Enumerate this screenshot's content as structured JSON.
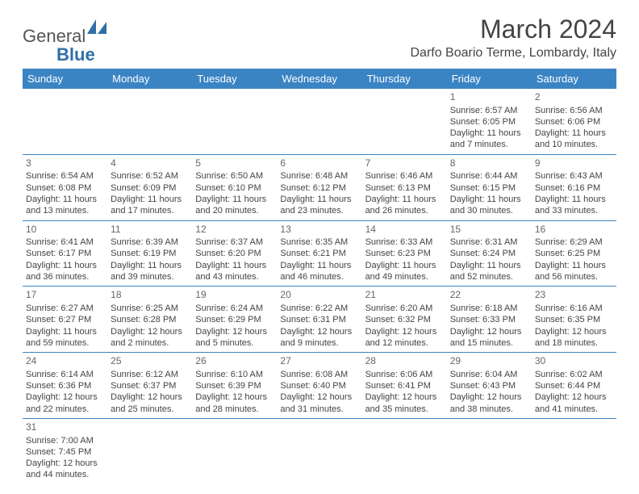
{
  "logo": {
    "text1": "General",
    "text2": "Blue"
  },
  "title": "March 2024",
  "location": "Darfo Boario Terme, Lombardy, Italy",
  "colors": {
    "header_bg": "#3b84c4",
    "header_text": "#ffffff",
    "border": "#3b84c4",
    "body_text": "#444444",
    "daynum_text": "#666666",
    "logo_gray": "#555555",
    "logo_blue": "#2f6fa7",
    "page_bg": "#ffffff"
  },
  "typography": {
    "title_fontsize": 32,
    "location_fontsize": 16,
    "dayheader_fontsize": 13,
    "cell_fontsize": 11,
    "daynum_fontsize": 12,
    "logo_fontsize": 22
  },
  "day_headers": [
    "Sunday",
    "Monday",
    "Tuesday",
    "Wednesday",
    "Thursday",
    "Friday",
    "Saturday"
  ],
  "weeks": [
    [
      null,
      null,
      null,
      null,
      null,
      {
        "n": "1",
        "sr": "Sunrise: 6:57 AM",
        "ss": "Sunset: 6:05 PM",
        "dl1": "Daylight: 11 hours",
        "dl2": "and 7 minutes."
      },
      {
        "n": "2",
        "sr": "Sunrise: 6:56 AM",
        "ss": "Sunset: 6:06 PM",
        "dl1": "Daylight: 11 hours",
        "dl2": "and 10 minutes."
      }
    ],
    [
      {
        "n": "3",
        "sr": "Sunrise: 6:54 AM",
        "ss": "Sunset: 6:08 PM",
        "dl1": "Daylight: 11 hours",
        "dl2": "and 13 minutes."
      },
      {
        "n": "4",
        "sr": "Sunrise: 6:52 AM",
        "ss": "Sunset: 6:09 PM",
        "dl1": "Daylight: 11 hours",
        "dl2": "and 17 minutes."
      },
      {
        "n": "5",
        "sr": "Sunrise: 6:50 AM",
        "ss": "Sunset: 6:10 PM",
        "dl1": "Daylight: 11 hours",
        "dl2": "and 20 minutes."
      },
      {
        "n": "6",
        "sr": "Sunrise: 6:48 AM",
        "ss": "Sunset: 6:12 PM",
        "dl1": "Daylight: 11 hours",
        "dl2": "and 23 minutes."
      },
      {
        "n": "7",
        "sr": "Sunrise: 6:46 AM",
        "ss": "Sunset: 6:13 PM",
        "dl1": "Daylight: 11 hours",
        "dl2": "and 26 minutes."
      },
      {
        "n": "8",
        "sr": "Sunrise: 6:44 AM",
        "ss": "Sunset: 6:15 PM",
        "dl1": "Daylight: 11 hours",
        "dl2": "and 30 minutes."
      },
      {
        "n": "9",
        "sr": "Sunrise: 6:43 AM",
        "ss": "Sunset: 6:16 PM",
        "dl1": "Daylight: 11 hours",
        "dl2": "and 33 minutes."
      }
    ],
    [
      {
        "n": "10",
        "sr": "Sunrise: 6:41 AM",
        "ss": "Sunset: 6:17 PM",
        "dl1": "Daylight: 11 hours",
        "dl2": "and 36 minutes."
      },
      {
        "n": "11",
        "sr": "Sunrise: 6:39 AM",
        "ss": "Sunset: 6:19 PM",
        "dl1": "Daylight: 11 hours",
        "dl2": "and 39 minutes."
      },
      {
        "n": "12",
        "sr": "Sunrise: 6:37 AM",
        "ss": "Sunset: 6:20 PM",
        "dl1": "Daylight: 11 hours",
        "dl2": "and 43 minutes."
      },
      {
        "n": "13",
        "sr": "Sunrise: 6:35 AM",
        "ss": "Sunset: 6:21 PM",
        "dl1": "Daylight: 11 hours",
        "dl2": "and 46 minutes."
      },
      {
        "n": "14",
        "sr": "Sunrise: 6:33 AM",
        "ss": "Sunset: 6:23 PM",
        "dl1": "Daylight: 11 hours",
        "dl2": "and 49 minutes."
      },
      {
        "n": "15",
        "sr": "Sunrise: 6:31 AM",
        "ss": "Sunset: 6:24 PM",
        "dl1": "Daylight: 11 hours",
        "dl2": "and 52 minutes."
      },
      {
        "n": "16",
        "sr": "Sunrise: 6:29 AM",
        "ss": "Sunset: 6:25 PM",
        "dl1": "Daylight: 11 hours",
        "dl2": "and 56 minutes."
      }
    ],
    [
      {
        "n": "17",
        "sr": "Sunrise: 6:27 AM",
        "ss": "Sunset: 6:27 PM",
        "dl1": "Daylight: 11 hours",
        "dl2": "and 59 minutes."
      },
      {
        "n": "18",
        "sr": "Sunrise: 6:25 AM",
        "ss": "Sunset: 6:28 PM",
        "dl1": "Daylight: 12 hours",
        "dl2": "and 2 minutes."
      },
      {
        "n": "19",
        "sr": "Sunrise: 6:24 AM",
        "ss": "Sunset: 6:29 PM",
        "dl1": "Daylight: 12 hours",
        "dl2": "and 5 minutes."
      },
      {
        "n": "20",
        "sr": "Sunrise: 6:22 AM",
        "ss": "Sunset: 6:31 PM",
        "dl1": "Daylight: 12 hours",
        "dl2": "and 9 minutes."
      },
      {
        "n": "21",
        "sr": "Sunrise: 6:20 AM",
        "ss": "Sunset: 6:32 PM",
        "dl1": "Daylight: 12 hours",
        "dl2": "and 12 minutes."
      },
      {
        "n": "22",
        "sr": "Sunrise: 6:18 AM",
        "ss": "Sunset: 6:33 PM",
        "dl1": "Daylight: 12 hours",
        "dl2": "and 15 minutes."
      },
      {
        "n": "23",
        "sr": "Sunrise: 6:16 AM",
        "ss": "Sunset: 6:35 PM",
        "dl1": "Daylight: 12 hours",
        "dl2": "and 18 minutes."
      }
    ],
    [
      {
        "n": "24",
        "sr": "Sunrise: 6:14 AM",
        "ss": "Sunset: 6:36 PM",
        "dl1": "Daylight: 12 hours",
        "dl2": "and 22 minutes."
      },
      {
        "n": "25",
        "sr": "Sunrise: 6:12 AM",
        "ss": "Sunset: 6:37 PM",
        "dl1": "Daylight: 12 hours",
        "dl2": "and 25 minutes."
      },
      {
        "n": "26",
        "sr": "Sunrise: 6:10 AM",
        "ss": "Sunset: 6:39 PM",
        "dl1": "Daylight: 12 hours",
        "dl2": "and 28 minutes."
      },
      {
        "n": "27",
        "sr": "Sunrise: 6:08 AM",
        "ss": "Sunset: 6:40 PM",
        "dl1": "Daylight: 12 hours",
        "dl2": "and 31 minutes."
      },
      {
        "n": "28",
        "sr": "Sunrise: 6:06 AM",
        "ss": "Sunset: 6:41 PM",
        "dl1": "Daylight: 12 hours",
        "dl2": "and 35 minutes."
      },
      {
        "n": "29",
        "sr": "Sunrise: 6:04 AM",
        "ss": "Sunset: 6:43 PM",
        "dl1": "Daylight: 12 hours",
        "dl2": "and 38 minutes."
      },
      {
        "n": "30",
        "sr": "Sunrise: 6:02 AM",
        "ss": "Sunset: 6:44 PM",
        "dl1": "Daylight: 12 hours",
        "dl2": "and 41 minutes."
      }
    ],
    [
      {
        "n": "31",
        "sr": "Sunrise: 7:00 AM",
        "ss": "Sunset: 7:45 PM",
        "dl1": "Daylight: 12 hours",
        "dl2": "and 44 minutes."
      },
      null,
      null,
      null,
      null,
      null,
      null
    ]
  ]
}
